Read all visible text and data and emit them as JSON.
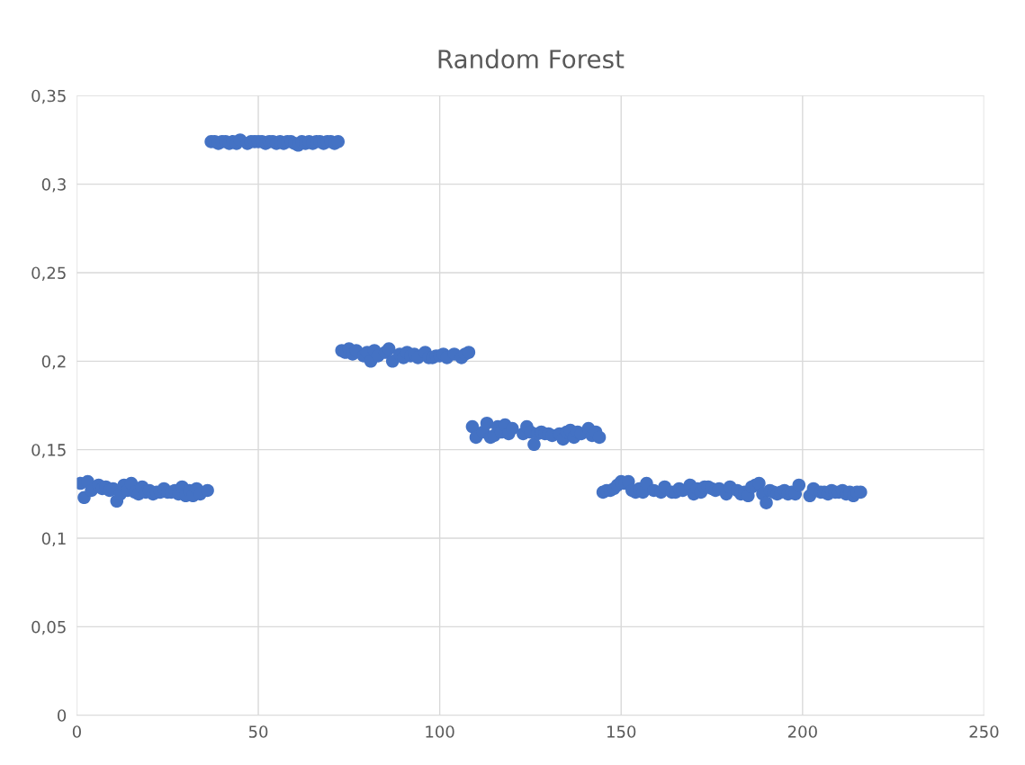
{
  "chart_data": {
    "type": "scatter",
    "title": "Random Forest",
    "x": [
      1,
      2,
      3,
      4,
      5,
      6,
      7,
      8,
      9,
      10,
      11,
      12,
      13,
      14,
      15,
      16,
      17,
      18,
      19,
      20,
      21,
      22,
      23,
      24,
      25,
      26,
      27,
      28,
      29,
      30,
      31,
      32,
      33,
      34,
      35,
      36,
      37,
      38,
      39,
      40,
      41,
      42,
      43,
      44,
      45,
      46,
      47,
      48,
      49,
      50,
      51,
      52,
      53,
      54,
      55,
      56,
      57,
      58,
      59,
      60,
      61,
      62,
      63,
      64,
      65,
      66,
      67,
      68,
      69,
      70,
      71,
      72,
      73,
      74,
      75,
      76,
      77,
      78,
      79,
      80,
      81,
      82,
      83,
      84,
      85,
      86,
      87,
      88,
      89,
      90,
      91,
      92,
      93,
      94,
      95,
      96,
      97,
      98,
      99,
      100,
      101,
      102,
      103,
      104,
      105,
      106,
      107,
      108,
      109,
      110,
      111,
      112,
      113,
      114,
      115,
      116,
      117,
      118,
      119,
      120,
      121,
      122,
      123,
      124,
      125,
      126,
      127,
      128,
      129,
      130,
      131,
      132,
      133,
      134,
      135,
      136,
      137,
      138,
      139,
      140,
      141,
      142,
      143,
      144,
      145,
      146,
      147,
      148,
      149,
      150,
      151,
      152,
      153,
      154,
      155,
      156,
      157,
      158,
      159,
      160,
      161,
      162,
      163,
      164,
      165,
      166,
      167,
      168,
      169,
      170,
      171,
      172,
      173,
      174,
      175,
      176,
      177,
      178,
      179,
      180,
      181,
      182,
      183,
      184,
      185,
      186,
      187,
      188,
      189,
      190,
      191,
      192,
      193,
      194,
      195,
      196,
      197,
      198,
      199,
      200,
      201,
      202,
      203,
      204,
      205,
      206,
      207,
      208,
      209,
      210,
      211,
      212,
      213,
      214,
      215,
      216
    ],
    "series": [
      {
        "color": "#4472c4",
        "values": [
          0.131,
          0.123,
          0.132,
          0.127,
          null,
          0.13,
          0.128,
          0.129,
          0.127,
          0.128,
          0.121,
          0.125,
          0.13,
          0.127,
          0.131,
          0.126,
          0.125,
          0.129,
          0.126,
          0.127,
          0.125,
          0.126,
          0.126,
          0.128,
          0.126,
          0.126,
          0.127,
          0.125,
          0.129,
          0.124,
          0.127,
          0.124,
          0.128,
          0.125,
          null,
          0.127,
          0.324,
          0.324,
          0.323,
          0.324,
          0.324,
          0.323,
          0.324,
          0.323,
          0.325,
          null,
          0.323,
          0.324,
          0.324,
          0.324,
          0.324,
          0.323,
          0.324,
          0.324,
          0.323,
          0.324,
          0.323,
          0.324,
          0.324,
          0.323,
          0.322,
          0.324,
          0.323,
          0.324,
          0.323,
          0.324,
          0.324,
          0.323,
          0.324,
          0.324,
          0.323,
          0.324,
          0.206,
          0.205,
          0.207,
          0.204,
          0.206,
          null,
          0.203,
          0.205,
          0.2,
          0.206,
          0.203,
          null,
          0.205,
          0.207,
          0.2,
          null,
          0.204,
          0.202,
          0.205,
          0.203,
          0.204,
          0.202,
          null,
          0.205,
          0.202,
          0.202,
          0.203,
          0.203,
          0.204,
          0.202,
          null,
          0.204,
          null,
          0.202,
          0.204,
          0.205,
          0.163,
          0.157,
          null,
          0.16,
          0.165,
          0.157,
          0.158,
          0.163,
          0.16,
          0.164,
          0.159,
          0.162,
          null,
          null,
          0.159,
          0.163,
          0.16,
          0.153,
          0.159,
          0.16,
          0.159,
          0.159,
          0.158,
          null,
          0.159,
          0.156,
          0.16,
          0.161,
          0.157,
          0.16,
          0.159,
          null,
          0.162,
          0.158,
          0.16,
          0.157,
          0.126,
          0.127,
          0.127,
          0.128,
          0.13,
          0.132,
          0.131,
          0.132,
          0.127,
          0.126,
          0.128,
          0.126,
          0.131,
          null,
          0.127,
          null,
          0.126,
          0.129,
          null,
          0.126,
          0.126,
          0.128,
          0.127,
          null,
          0.13,
          0.125,
          0.128,
          0.126,
          0.129,
          0.129,
          0.128,
          0.127,
          0.128,
          null,
          0.125,
          0.129,
          null,
          0.127,
          0.125,
          0.126,
          0.124,
          0.129,
          0.13,
          0.131,
          0.125,
          0.12,
          0.127,
          0.126,
          0.125,
          0.126,
          0.127,
          0.125,
          0.126,
          0.125,
          0.13,
          null,
          null,
          0.124,
          0.128,
          null,
          0.126,
          0.126,
          0.125,
          0.127,
          0.126,
          0.126,
          0.127,
          0.125,
          0.126,
          0.124,
          0.126,
          0.126
        ]
      }
    ],
    "xlim": [
      0,
      250
    ],
    "xticks": [
      0,
      50,
      100,
      150,
      200,
      250
    ],
    "ylim": [
      0,
      0.35
    ],
    "yticks": [
      0,
      {
        "value": 0.05,
        "label": "0,05"
      },
      {
        "value": 0.1,
        "label": "0,1"
      },
      {
        "value": 0.15,
        "label": "0,15"
      },
      {
        "value": 0.2,
        "label": "0,2"
      },
      {
        "value": 0.25,
        "label": "0,25"
      },
      {
        "value": 0.3,
        "label": "0,3"
      },
      {
        "value": 0.35,
        "label": "0,35"
      }
    ],
    "grid": true,
    "marker": "circle"
  }
}
